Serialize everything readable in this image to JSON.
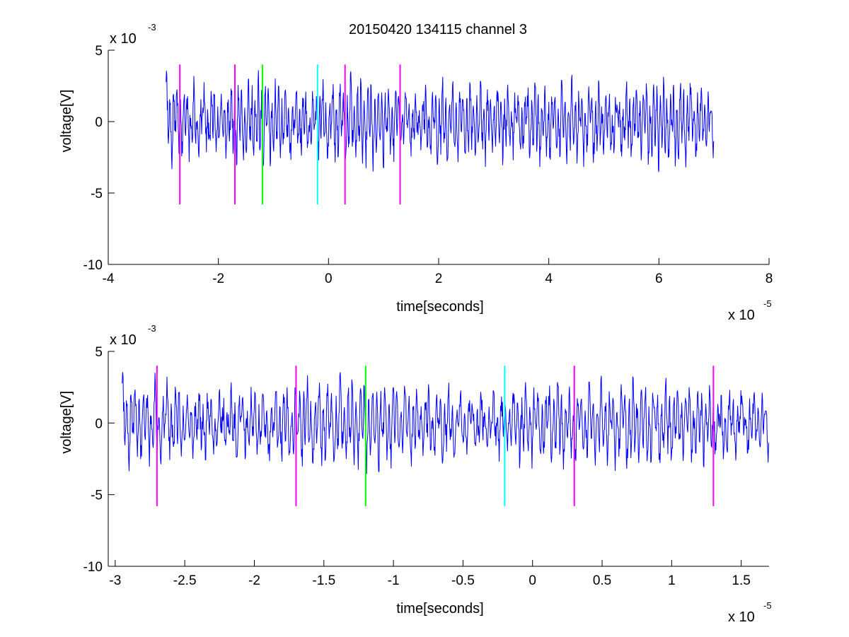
{
  "figure": {
    "title": "20150420 134115 channel 3",
    "background": "#ffffff"
  },
  "chart_data": [
    {
      "type": "line",
      "title": "20150420 134115 channel 3",
      "xlabel": "time[seconds]",
      "ylabel": "voltage[V]",
      "x_multiplier_label": "x 10",
      "x_multiplier_exp": "-5",
      "y_multiplier_label": "x 10",
      "y_multiplier_exp": "-3",
      "xlim": [
        -4,
        8
      ],
      "ylim": [
        -10,
        5
      ],
      "xticks": [
        -4,
        -2,
        0,
        2,
        4,
        6,
        8
      ],
      "xtick_labels": [
        "-4",
        "-2",
        "0",
        "2",
        "4",
        "6",
        "8"
      ],
      "yticks": [
        -10,
        -5,
        0,
        5
      ],
      "ytick_labels": [
        "-10",
        "-5",
        "0",
        "5"
      ],
      "grid": false,
      "signal": {
        "color": "#0000ff",
        "x_start": -2.95,
        "x_end": 7.0,
        "seed": 7,
        "approx_amplitude": 3.5
      },
      "markers": [
        {
          "x": -2.7,
          "color": "#ff00ff",
          "ymin": -5.8,
          "ymax": 4.0
        },
        {
          "x": -1.7,
          "color": "#ff00ff",
          "ymin": -5.8,
          "ymax": 4.0
        },
        {
          "x": -1.2,
          "color": "#00ff00",
          "ymin": -5.8,
          "ymax": 4.0
        },
        {
          "x": -0.2,
          "color": "#00ffff",
          "ymin": -5.8,
          "ymax": 4.0
        },
        {
          "x": 0.3,
          "color": "#ff00ff",
          "ymin": -5.8,
          "ymax": 4.0
        },
        {
          "x": 1.3,
          "color": "#ff00ff",
          "ymin": -5.8,
          "ymax": 4.0
        }
      ]
    },
    {
      "type": "line",
      "title": "",
      "xlabel": "time[seconds]",
      "ylabel": "voltage[V]",
      "x_multiplier_label": "x 10",
      "x_multiplier_exp": "-5",
      "y_multiplier_label": "x 10",
      "y_multiplier_exp": "-3",
      "xlim": [
        -3.05,
        1.7
      ],
      "ylim": [
        -10,
        5
      ],
      "xticks": [
        -3,
        -2.5,
        -2,
        -1.5,
        -1,
        -0.5,
        0,
        0.5,
        1,
        1.5
      ],
      "xtick_labels": [
        "-3",
        "-2.5",
        "-2",
        "-1.5",
        "-1",
        "-0.5",
        "0",
        "0.5",
        "1",
        "1.5"
      ],
      "yticks": [
        -10,
        -5,
        0,
        5
      ],
      "ytick_labels": [
        "-10",
        "-5",
        "0",
        "5"
      ],
      "grid": false,
      "signal": {
        "color": "#0000ff",
        "x_start": -2.95,
        "x_end": 1.7,
        "seed": 7,
        "approx_amplitude": 3.5
      },
      "markers": [
        {
          "x": -2.7,
          "color": "#ff00ff",
          "ymin": -5.8,
          "ymax": 4.0
        },
        {
          "x": -1.7,
          "color": "#ff00ff",
          "ymin": -5.8,
          "ymax": 4.0
        },
        {
          "x": -1.2,
          "color": "#00ff00",
          "ymin": -5.8,
          "ymax": 4.0
        },
        {
          "x": -0.2,
          "color": "#00ffff",
          "ymin": -5.8,
          "ymax": 4.0
        },
        {
          "x": 0.3,
          "color": "#ff00ff",
          "ymin": -5.8,
          "ymax": 4.0
        },
        {
          "x": 1.3,
          "color": "#ff00ff",
          "ymin": -5.8,
          "ymax": 4.0
        }
      ]
    }
  ]
}
